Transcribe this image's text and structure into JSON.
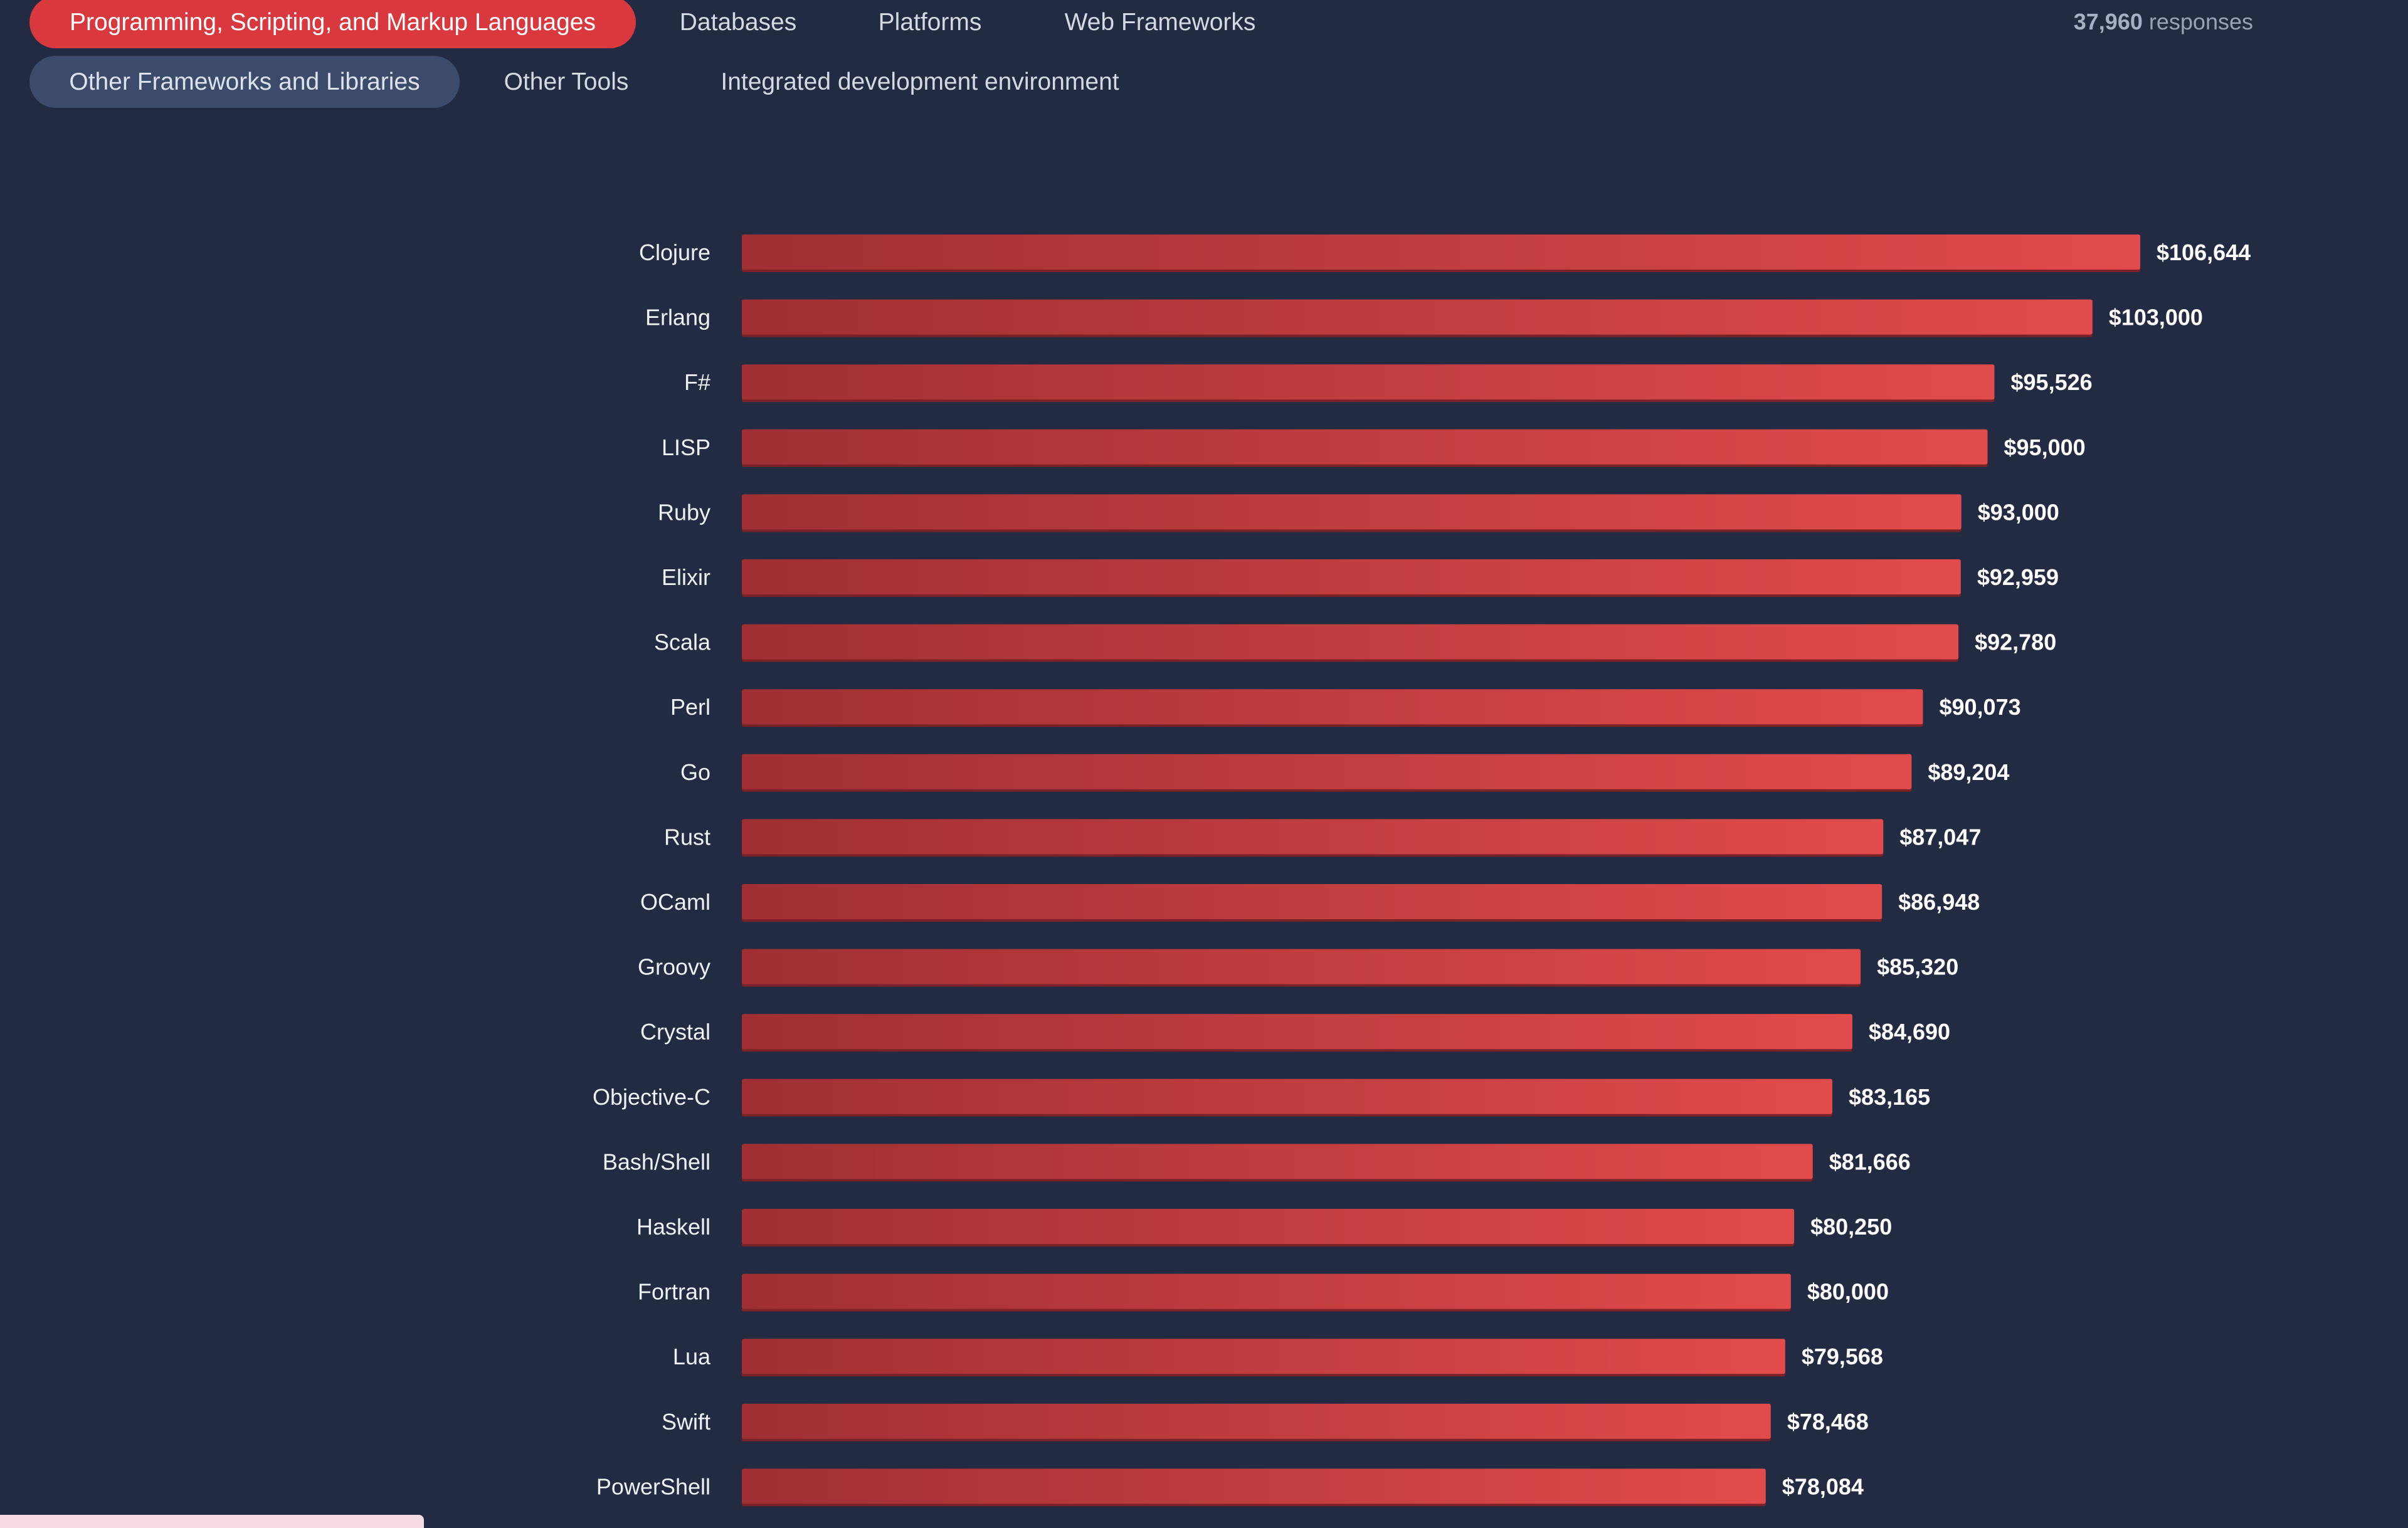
{
  "tabs": {
    "row1": [
      {
        "label": "Programming, Scripting, and Markup Languages",
        "active": true
      },
      {
        "label": "Databases"
      },
      {
        "label": "Platforms"
      },
      {
        "label": "Web Frameworks"
      }
    ],
    "row2": [
      {
        "label": "Other Frameworks and Libraries",
        "secondary": true
      },
      {
        "label": "Other Tools"
      },
      {
        "label": "Integrated development environment"
      }
    ]
  },
  "responses": {
    "count": "37,960",
    "label": "responses"
  },
  "colors": {
    "background": "#222b42",
    "bar_start": "#9f2f33",
    "bar_end": "#e24b4c",
    "active_tab": "#d9393e",
    "secondary_tab": "#3b4b69"
  },
  "chart_data": {
    "type": "bar",
    "orientation": "horizontal",
    "categories": [
      "Clojure",
      "Erlang",
      "F#",
      "LISP",
      "Ruby",
      "Elixir",
      "Scala",
      "Perl",
      "Go",
      "Rust",
      "OCaml",
      "Groovy",
      "Crystal",
      "Objective-C",
      "Bash/Shell",
      "Haskell",
      "Fortran",
      "Lua",
      "Swift",
      "PowerShell"
    ],
    "values": [
      106644,
      103000,
      95526,
      95000,
      93000,
      92959,
      92780,
      90073,
      89204,
      87047,
      86948,
      85320,
      84690,
      83165,
      81666,
      80250,
      80000,
      79568,
      78468,
      78084
    ],
    "value_labels": [
      "$106,644",
      "$103,000",
      "$95,526",
      "$95,000",
      "$93,000",
      "$92,959",
      "$92,780",
      "$90,073",
      "$89,204",
      "$87,047",
      "$86,948",
      "$85,320",
      "$84,690",
      "$83,165",
      "$81,666",
      "$80,250",
      "$80,000",
      "$79,568",
      "$78,468",
      "$78,084"
    ],
    "xlim": [
      0,
      106644
    ],
    "grid": false,
    "legend": "none"
  }
}
